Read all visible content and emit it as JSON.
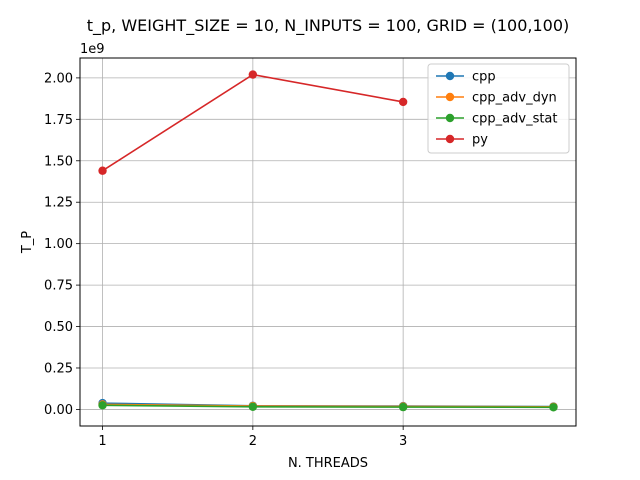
{
  "chart_data": {
    "type": "line",
    "title": "t_p, WEIGHT_SIZE = 10, N_INPUTS = 100, GRID = (100,100)",
    "xlabel": "N. THREADS",
    "ylabel": "T_P",
    "y_offset_label": "1e9",
    "x": [
      1,
      2,
      3,
      4
    ],
    "x_tick_labels": [
      "1",
      "2",
      "3"
    ],
    "xlim": [
      0.85,
      4.15
    ],
    "ylim": [
      -0.1,
      2.12
    ],
    "y_ticks": [
      0.0,
      0.25,
      0.5,
      0.75,
      1.0,
      1.25,
      1.5,
      1.75,
      2.0
    ],
    "y_tick_labels": [
      "0.00",
      "0.25",
      "0.50",
      "0.75",
      "1.00",
      "1.25",
      "1.50",
      "1.75",
      "2.00"
    ],
    "grid": true,
    "legend_position": "top-right",
    "series": [
      {
        "name": "cpp",
        "color": "#1f77b4",
        "values": [
          0.038,
          0.022,
          0.02,
          0.017
        ]
      },
      {
        "name": "cpp_adv_dyn",
        "color": "#ff7f0e",
        "values": [
          0.03,
          0.02,
          0.018,
          0.016
        ]
      },
      {
        "name": "cpp_adv_stat",
        "color": "#2ca02c",
        "values": [
          0.025,
          0.016,
          0.014,
          0.013
        ]
      },
      {
        "name": "py",
        "color": "#d62728",
        "values": [
          1.44,
          2.02,
          1.855,
          null
        ]
      }
    ]
  }
}
